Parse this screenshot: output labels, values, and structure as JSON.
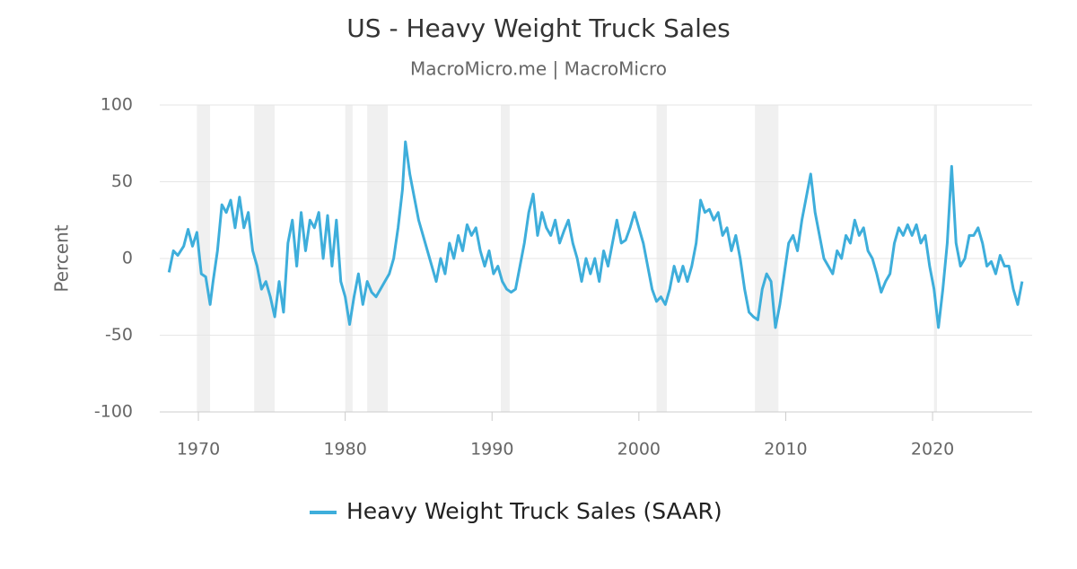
{
  "chart_data": {
    "type": "line",
    "title": "US - Heavy Weight Truck Sales",
    "subtitle": "MacroMicro.me | MacroMicro",
    "y_label": "Percent",
    "xlim": [
      1967.37,
      2026.78
    ],
    "xticks": [
      1970,
      1980,
      1990,
      2000,
      2010,
      2020
    ],
    "ylim": [
      -100,
      100
    ],
    "yticks": [
      100,
      50,
      0,
      -50,
      -100
    ],
    "grid": true,
    "legend": "bottom",
    "recessions": [
      [
        1969.9,
        1970.8
      ],
      [
        1973.8,
        1975.2
      ],
      [
        1980.0,
        1980.5
      ],
      [
        1981.5,
        1982.9
      ],
      [
        1990.6,
        1991.2
      ],
      [
        2001.2,
        2001.9
      ],
      [
        2007.9,
        2009.5
      ],
      [
        2020.1,
        2020.3
      ]
    ],
    "recession_color": "#f0f0f0",
    "x": [
      1968.0,
      1968.3,
      1968.6,
      1969.0,
      1969.3,
      1969.6,
      1969.9,
      1970.2,
      1970.5,
      1970.8,
      1971.0,
      1971.3,
      1971.6,
      1971.9,
      1972.2,
      1972.5,
      1972.8,
      1973.1,
      1973.4,
      1973.7,
      1974.0,
      1974.3,
      1974.6,
      1974.9,
      1975.2,
      1975.5,
      1975.8,
      1976.1,
      1976.4,
      1976.7,
      1977.0,
      1977.3,
      1977.6,
      1977.9,
      1978.2,
      1978.5,
      1978.8,
      1979.1,
      1979.4,
      1979.7,
      1980.0,
      1980.3,
      1980.6,
      1980.9,
      1981.2,
      1981.5,
      1981.8,
      1982.1,
      1982.4,
      1982.7,
      1983.0,
      1983.3,
      1983.6,
      1983.9,
      1984.1,
      1984.4,
      1984.7,
      1985.0,
      1985.3,
      1985.6,
      1985.9,
      1986.2,
      1986.5,
      1986.8,
      1987.1,
      1987.4,
      1987.7,
      1988.0,
      1988.3,
      1988.6,
      1988.9,
      1989.2,
      1989.5,
      1989.8,
      1990.1,
      1990.4,
      1990.7,
      1991.0,
      1991.3,
      1991.6,
      1991.9,
      1992.2,
      1992.5,
      1992.8,
      1993.1,
      1993.4,
      1993.7,
      1994.0,
      1994.3,
      1994.6,
      1994.9,
      1995.2,
      1995.5,
      1995.8,
      1996.1,
      1996.4,
      1996.7,
      1997.0,
      1997.3,
      1997.6,
      1997.9,
      1998.2,
      1998.5,
      1998.8,
      1999.1,
      1999.4,
      1999.7,
      2000.0,
      2000.3,
      2000.6,
      2000.9,
      2001.2,
      2001.5,
      2001.8,
      2002.1,
      2002.4,
      2002.7,
      2003.0,
      2003.3,
      2003.6,
      2003.9,
      2004.2,
      2004.5,
      2004.8,
      2005.1,
      2005.4,
      2005.7,
      2006.0,
      2006.3,
      2006.6,
      2006.9,
      2007.2,
      2007.5,
      2007.8,
      2008.1,
      2008.4,
      2008.7,
      2009.0,
      2009.3,
      2009.6,
      2009.9,
      2010.2,
      2010.5,
      2010.8,
      2011.1,
      2011.4,
      2011.7,
      2012.0,
      2012.3,
      2012.6,
      2012.9,
      2013.2,
      2013.5,
      2013.8,
      2014.1,
      2014.4,
      2014.7,
      2015.0,
      2015.3,
      2015.6,
      2015.9,
      2016.2,
      2016.5,
      2016.8,
      2017.1,
      2017.4,
      2017.7,
      2018.0,
      2018.3,
      2018.6,
      2018.9,
      2019.2,
      2019.5,
      2019.8,
      2020.1,
      2020.4,
      2020.7,
      2021.0,
      2021.3,
      2021.6,
      2021.9,
      2022.2,
      2022.5,
      2022.8,
      2023.1,
      2023.4,
      2023.7,
      2024.0,
      2024.3,
      2024.6,
      2024.9,
      2025.2,
      2025.5,
      2025.8,
      2026.1
    ],
    "series": [
      {
        "name": "Heavy Weight Truck Sales (SAAR)",
        "color": "#3eaedb",
        "values": [
          -9,
          5,
          2,
          8,
          19,
          8,
          17,
          -10,
          -12,
          -30,
          -15,
          5,
          35,
          30,
          38,
          20,
          40,
          20,
          30,
          5,
          -5,
          -20,
          -15,
          -25,
          -38,
          -15,
          -35,
          10,
          25,
          -5,
          30,
          5,
          25,
          20,
          30,
          0,
          28,
          -5,
          25,
          -15,
          -25,
          -43,
          -25,
          -10,
          -30,
          -15,
          -22,
          -25,
          -20,
          -15,
          -10,
          0,
          20,
          45,
          76,
          55,
          40,
          25,
          15,
          5,
          -5,
          -15,
          0,
          -10,
          10,
          0,
          15,
          5,
          22,
          15,
          20,
          5,
          -5,
          5,
          -10,
          -5,
          -15,
          -20,
          -22,
          -20,
          -5,
          10,
          30,
          42,
          15,
          30,
          20,
          15,
          25,
          10,
          18,
          25,
          10,
          0,
          -15,
          0,
          -10,
          0,
          -15,
          5,
          -5,
          10,
          25,
          10,
          12,
          20,
          30,
          20,
          10,
          -5,
          -20,
          -28,
          -25,
          -30,
          -20,
          -5,
          -15,
          -5,
          -15,
          -5,
          10,
          38,
          30,
          32,
          25,
          30,
          15,
          20,
          5,
          15,
          0,
          -20,
          -35,
          -38,
          -40,
          -20,
          -10,
          -15,
          -45,
          -30,
          -10,
          10,
          15,
          5,
          25,
          40,
          55,
          30,
          15,
          0,
          -5,
          -10,
          5,
          0,
          15,
          10,
          25,
          15,
          20,
          5,
          0,
          -10,
          -22,
          -15,
          -10,
          10,
          20,
          15,
          22,
          15,
          22,
          10,
          15,
          -5,
          -20,
          -45,
          -20,
          10,
          60,
          10,
          -5,
          0,
          15,
          15,
          20,
          10,
          -5,
          -2,
          -10,
          2,
          -5,
          -5,
          -20,
          -30,
          -15
        ]
      }
    ]
  }
}
